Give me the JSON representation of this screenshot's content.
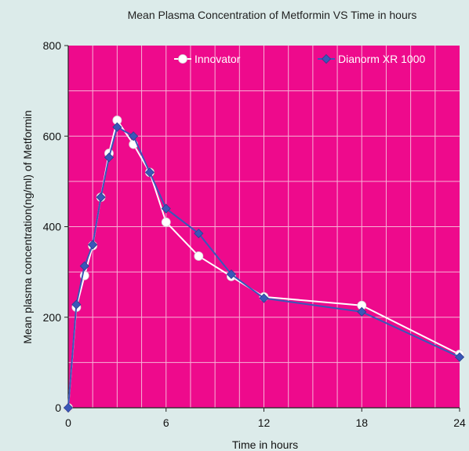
{
  "chart_data": {
    "type": "line",
    "title": "Mean Plasma Concentration of Metformin VS Time in hours",
    "xlabel": "Time in hours",
    "ylabel": "Mean  plasma concentration(ng/ml) of Metformin",
    "xlim": [
      0,
      24
    ],
    "ylim": [
      0,
      800
    ],
    "xticks": [
      0,
      6,
      12,
      18,
      24
    ],
    "yticks": [
      0,
      200,
      400,
      600,
      800
    ],
    "grid": true,
    "legend_position": "top",
    "background_color": "#ee0a8c",
    "grid_color": "#f7b2d6",
    "series": [
      {
        "name": "Innovator",
        "marker": "circle",
        "color": "#ffffff",
        "x": [
          0,
          0.5,
          1,
          1.5,
          2,
          2.5,
          3,
          4,
          5,
          6,
          8,
          10,
          12,
          18,
          24
        ],
        "y": [
          0,
          222,
          292,
          358,
          465,
          562,
          635,
          582,
          520,
          410,
          335,
          290,
          245,
          226,
          118
        ]
      },
      {
        "name": "Dianorm XR 1000",
        "marker": "diamond",
        "color": "#3a57b8",
        "x": [
          0,
          0.5,
          1,
          1.5,
          2,
          2.5,
          3,
          4,
          5,
          6,
          8,
          10,
          12,
          18,
          24
        ],
        "y": [
          0,
          228,
          313,
          360,
          465,
          553,
          620,
          600,
          520,
          440,
          385,
          295,
          242,
          212,
          112
        ]
      }
    ]
  }
}
